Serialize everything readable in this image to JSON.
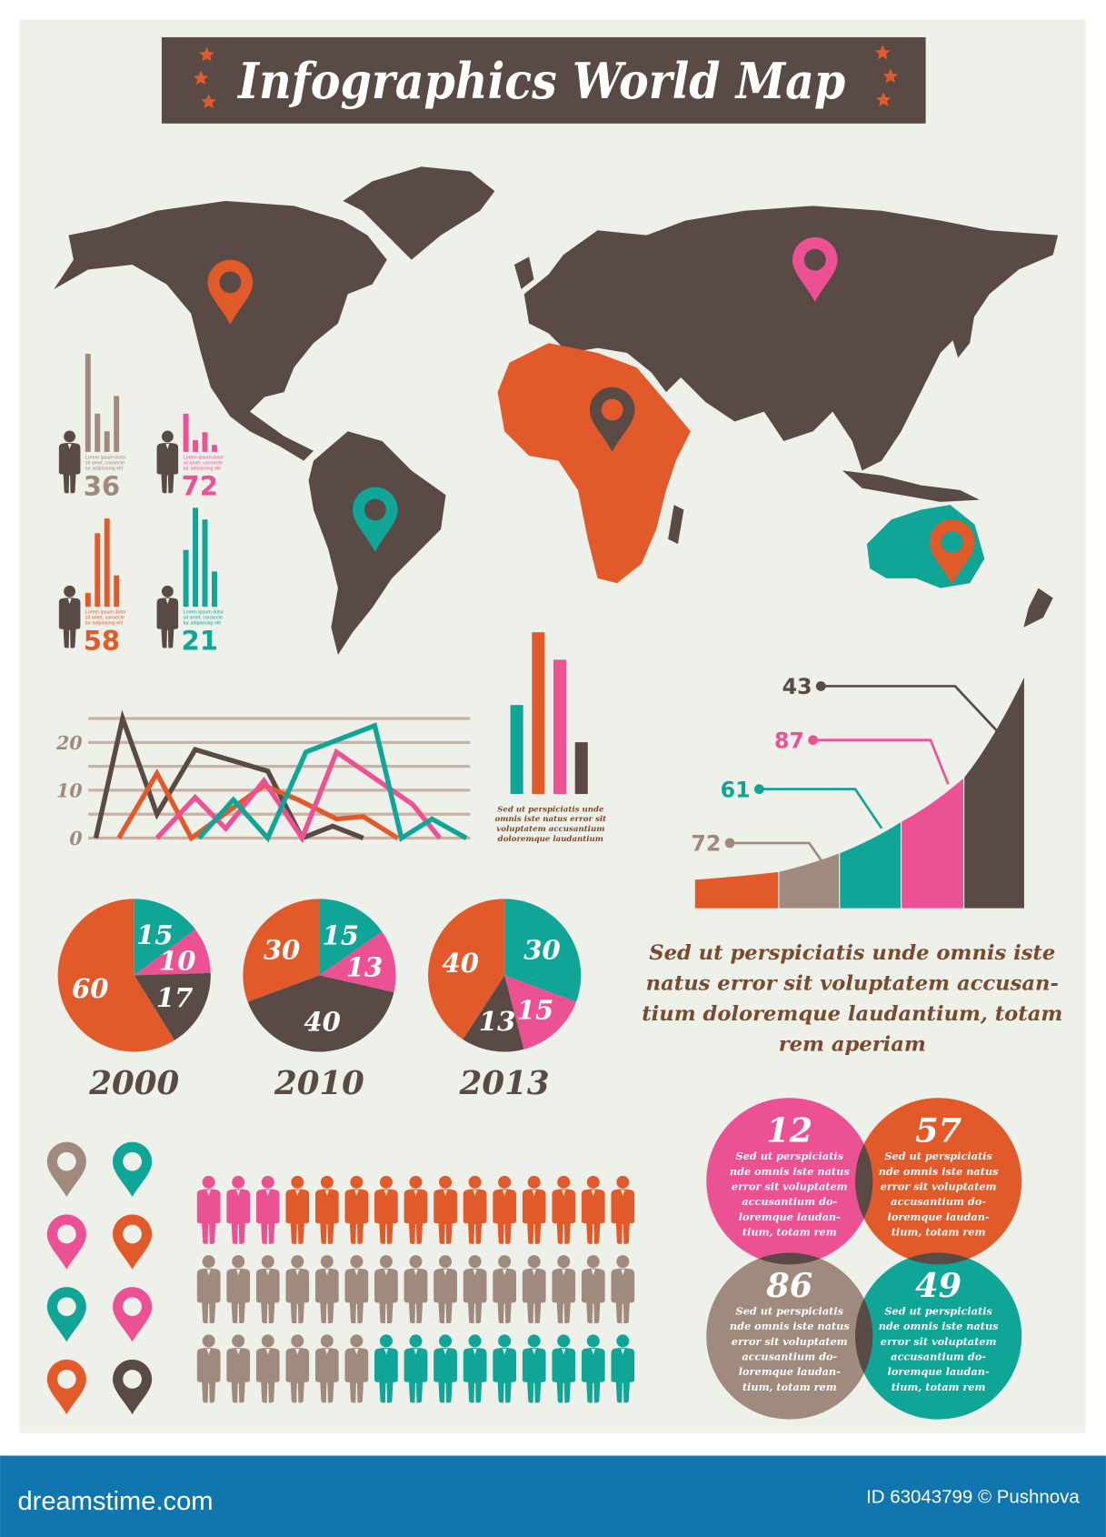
{
  "title": "Infographics World Map",
  "colors": {
    "orange": "#e25a2a",
    "teal": "#0fa597",
    "pink": "#ec5193",
    "dark": "#5a4a45",
    "grey": "#a08a7e",
    "background": "#eef0ea",
    "text_brown": "#7a4a2e",
    "grid": "#c9b2a4",
    "footer": "#1276ae"
  },
  "map": {
    "land_color": "dark",
    "africa_color": "orange",
    "australia_color": "teal",
    "pins": [
      {
        "region": "north-america",
        "color": "orange"
      },
      {
        "region": "asia",
        "color": "pink"
      },
      {
        "region": "africa",
        "color": "dark"
      },
      {
        "region": "south-america",
        "color": "teal"
      },
      {
        "region": "australia",
        "color": "orange"
      }
    ]
  },
  "person_stats": [
    {
      "value": "36",
      "color": "grey",
      "bars": [
        100,
        39,
        21,
        57
      ],
      "caption": [
        "Lorem ipsum dolor",
        "sit amet, consecte",
        "tur adipisicing elit"
      ]
    },
    {
      "value": "72",
      "color": "pink",
      "bars": [
        39,
        12,
        20,
        7
      ],
      "caption": [
        "Lorem ipsum dolor",
        "sit amet, consecte",
        "tur adipisicing elit"
      ]
    },
    {
      "value": "58",
      "color": "orange",
      "bars": [
        14,
        75,
        90,
        32
      ],
      "caption": [
        "Lorem ipsum dolor",
        "sit amet, consecte",
        "tur adipisicing elit"
      ]
    },
    {
      "value": "21",
      "color": "teal",
      "bars": [
        58,
        101,
        89,
        36
      ],
      "caption": [
        "Lorem ipsum dolor",
        "sit amet, consecte",
        "tur adipisicing elit"
      ]
    }
  ],
  "chart_data": [
    {
      "type": "line",
      "ylim": [
        0,
        25
      ],
      "yticks": [
        "0",
        "10",
        "20"
      ],
      "ytick_values": [
        0,
        10,
        20
      ],
      "grid_values": [
        0,
        5,
        10,
        15,
        20,
        25
      ],
      "grid": true,
      "series": [
        {
          "color": "dark",
          "points": [
            [
              2,
              0
            ],
            [
              9,
              25
            ],
            [
              18,
              5
            ],
            [
              28,
              18.5
            ],
            [
              47,
              14
            ],
            [
              56,
              0
            ],
            [
              64,
              2.5
            ],
            [
              72,
              0
            ]
          ]
        },
        {
          "color": "orange",
          "points": [
            [
              8,
              0
            ],
            [
              18,
              13.5
            ],
            [
              27,
              0
            ],
            [
              46,
              11
            ],
            [
              55,
              8
            ],
            [
              65,
              4
            ],
            [
              72,
              4.5
            ],
            [
              81,
              0
            ]
          ]
        },
        {
          "color": "pink",
          "points": [
            [
              18,
              0
            ],
            [
              28,
              8.5
            ],
            [
              36,
              2
            ],
            [
              46,
              12
            ],
            [
              56,
              0
            ],
            [
              65,
              18
            ],
            [
              85,
              7
            ],
            [
              92,
              0
            ]
          ]
        },
        {
          "color": "teal",
          "points": [
            [
              29,
              0
            ],
            [
              38,
              8
            ],
            [
              47,
              0
            ],
            [
              57,
              18
            ],
            [
              75,
              23.5
            ],
            [
              82,
              0
            ],
            [
              90,
              4
            ],
            [
              99,
              0
            ]
          ]
        }
      ]
    },
    {
      "type": "bar",
      "values": [
        55,
        100,
        83,
        32
      ],
      "colors": [
        "teal",
        "orange",
        "pink",
        "dark"
      ],
      "caption": [
        "Sed ut perspiciatis unde",
        "omnis iste natus error sit",
        "voluptatem accusantium",
        "doloremque laudantium"
      ]
    },
    {
      "type": "area",
      "segment_colors": [
        "orange",
        "grey",
        "teal",
        "pink",
        "dark"
      ],
      "labels": [
        {
          "value": "43",
          "color": "dark",
          "segment": 4
        },
        {
          "value": "87",
          "color": "pink",
          "segment": 3
        },
        {
          "value": "61",
          "color": "teal",
          "segment": 2
        },
        {
          "value": "72",
          "color": "grey",
          "segment": 1
        }
      ]
    },
    {
      "type": "pie",
      "title": "2000",
      "slices": [
        {
          "value": 15,
          "color": "teal"
        },
        {
          "value": 10,
          "color": "pink"
        },
        {
          "value": 17,
          "color": "dark"
        },
        {
          "value": 60,
          "color": "orange"
        }
      ]
    },
    {
      "type": "pie",
      "title": "2010",
      "slices": [
        {
          "value": 15,
          "color": "teal"
        },
        {
          "value": 13,
          "color": "pink"
        },
        {
          "value": 40,
          "color": "dark"
        },
        {
          "value": 30,
          "color": "orange"
        }
      ]
    },
    {
      "type": "pie",
      "title": "2013",
      "slices": [
        {
          "value": 30,
          "color": "teal"
        },
        {
          "value": 15,
          "color": "pink"
        },
        {
          "value": 13,
          "color": "dark"
        },
        {
          "value": 40,
          "color": "orange"
        }
      ]
    }
  ],
  "paragraph": [
    "Sed ut perspiciatis unde omnis iste",
    "natus error sit voluptatem accusan-",
    "tium doloremque laudantium, totam",
    "rem aperiam"
  ],
  "pin_icons": [
    "grey",
    "teal",
    "pink",
    "orange",
    "teal",
    "pink",
    "orange",
    "dark"
  ],
  "people_grid": [
    [
      {
        "color": "pink",
        "count": 3
      },
      {
        "color": "orange",
        "count": 12
      }
    ],
    [
      {
        "color": "grey",
        "count": 15
      }
    ],
    [
      {
        "color": "grey",
        "count": 6
      },
      {
        "color": "teal",
        "count": 9
      }
    ]
  ],
  "venn": [
    {
      "value": "12",
      "color": "pink",
      "text": [
        "Sed ut perspiciatis",
        "nde omnis iste natus",
        "error sit voluptatem",
        "accusantium do-",
        "loremque laudan-",
        "tium, totam rem"
      ]
    },
    {
      "value": "57",
      "color": "orange",
      "text": [
        "Sed ut perspiciatis",
        "nde omnis iste natus",
        "error sit voluptatem",
        "accusantium do-",
        "loremque laudan-",
        "tium, totam rem"
      ]
    },
    {
      "value": "86",
      "color": "grey",
      "text": [
        "Sed ut perspiciatis",
        "nde omnis iste natus",
        "error sit voluptatem",
        "accusantium do-",
        "loremque laudan-",
        "tium, totam rem"
      ]
    },
    {
      "value": "49",
      "color": "teal",
      "text": [
        "Sed ut perspiciatis",
        "nde omnis iste natus",
        "error sit voluptatem",
        "accusantium do-",
        "loremque laudan-",
        "tium, totam rem"
      ]
    }
  ],
  "footer": {
    "brand": "dreamstime.com",
    "credit": "ID 63043799 © Pushnova"
  }
}
